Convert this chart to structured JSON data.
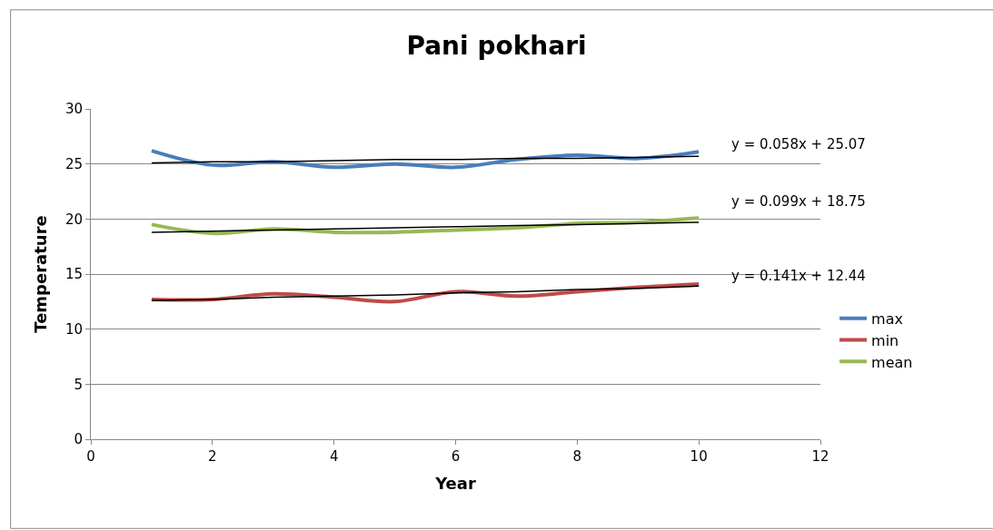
{
  "chart_data": {
    "type": "line",
    "title": "Pani pokhari",
    "xlabel": "Year",
    "ylabel": "Temperature",
    "x": [
      1,
      2,
      3,
      4,
      5,
      6,
      7,
      8,
      9,
      10
    ],
    "xlim": [
      0,
      12
    ],
    "xticks": [
      0,
      2,
      4,
      6,
      8,
      10,
      12
    ],
    "ylim": [
      0,
      30
    ],
    "yticks": [
      0,
      5,
      10,
      15,
      20,
      25,
      30
    ],
    "grid": "y",
    "legend": "right",
    "marker": "none",
    "line_style": "solid",
    "series": [
      {
        "name": "max",
        "color": "#4a7ebb",
        "values": [
          26.2,
          24.9,
          25.2,
          24.7,
          25.0,
          24.7,
          25.4,
          25.8,
          25.5,
          26.1
        ]
      },
      {
        "name": "min",
        "color": "#be4b48",
        "values": [
          12.7,
          12.7,
          13.2,
          12.9,
          12.5,
          13.4,
          13.0,
          13.4,
          13.8,
          14.1
        ]
      },
      {
        "name": "mean",
        "color": "#98b954",
        "values": [
          19.5,
          18.7,
          19.1,
          18.8,
          18.8,
          19.0,
          19.2,
          19.6,
          19.7,
          20.1
        ]
      },
      {
        "type": "line",
        "color": "#000000",
        "values": [
          25.1,
          25.2,
          25.2,
          25.3,
          25.4,
          25.4,
          25.5,
          25.5,
          25.6,
          25.7
        ]
      },
      {
        "type": "line",
        "color": "#000000",
        "values": [
          12.6,
          12.7,
          12.9,
          13.0,
          13.1,
          13.3,
          13.4,
          13.6,
          13.7,
          13.9
        ]
      },
      {
        "type": "line",
        "color": "#000000",
        "values": [
          18.8,
          18.9,
          19.0,
          19.1,
          19.2,
          19.3,
          19.4,
          19.5,
          19.6,
          19.7
        ]
      }
    ],
    "annotations": [
      "y = 0.058x + 25.07",
      "y = 0.099x + 18.75",
      "y = 0.141x + 12.44"
    ]
  }
}
